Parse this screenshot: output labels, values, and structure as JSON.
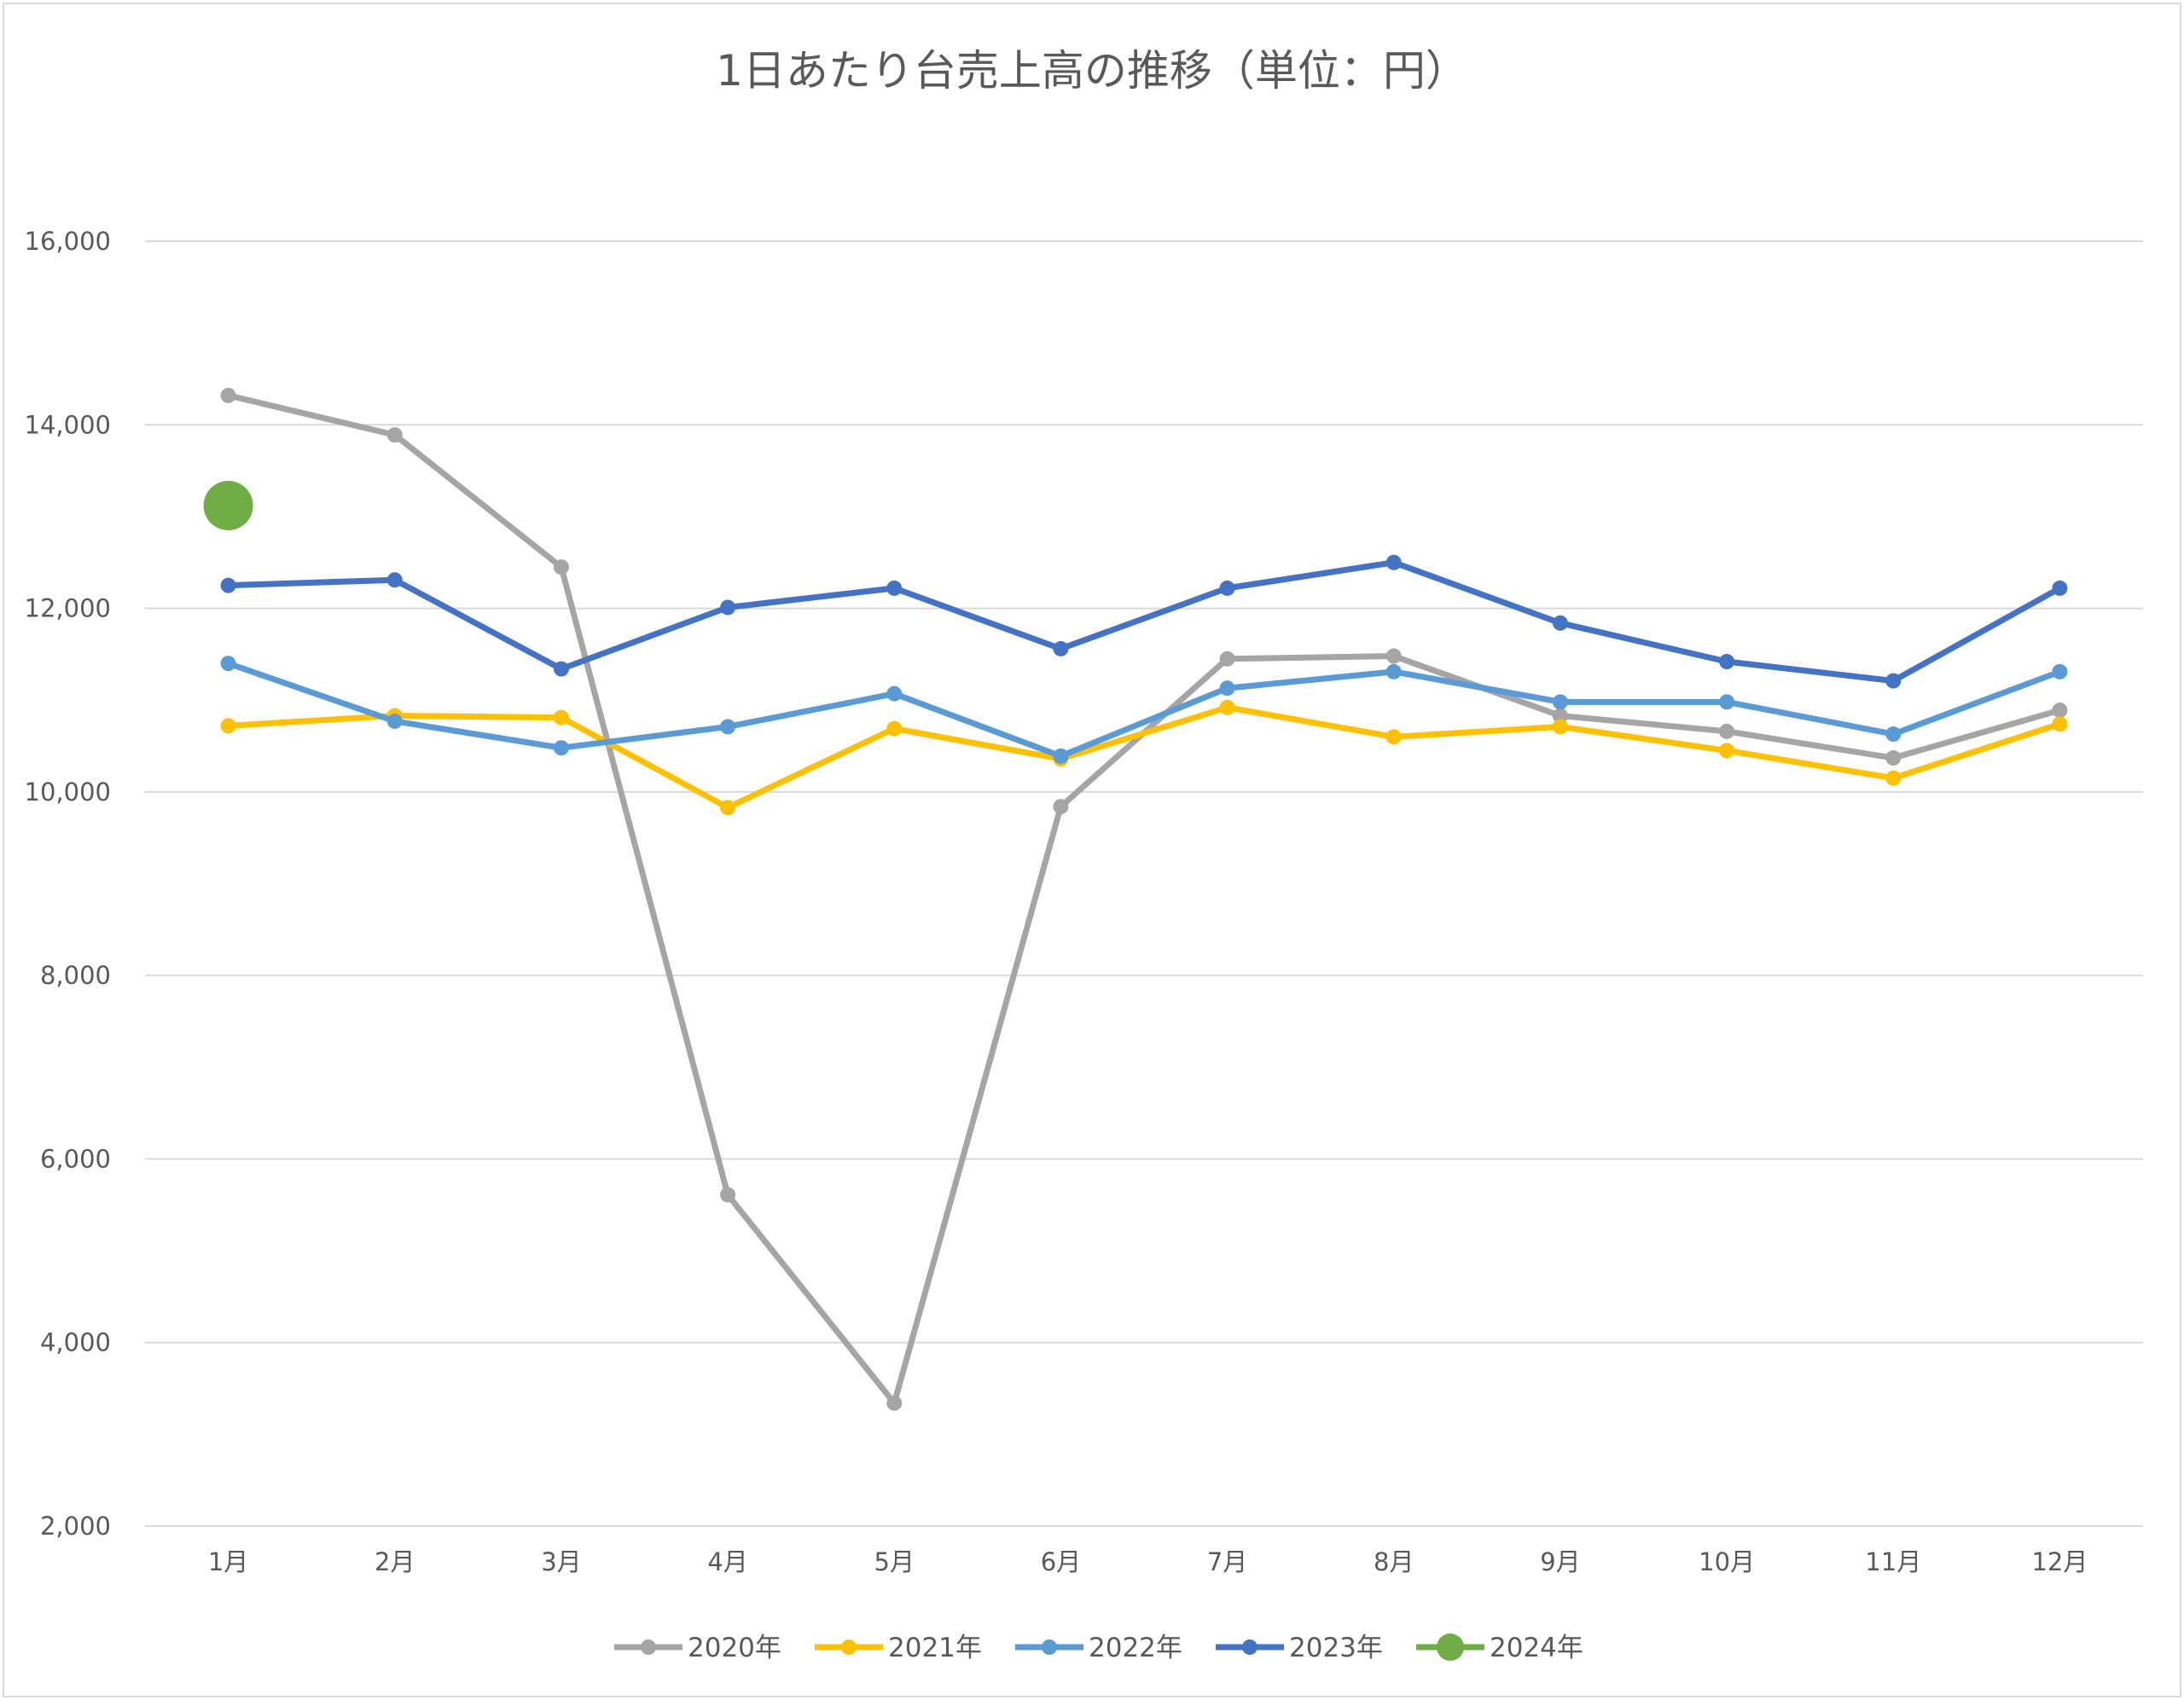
{
  "chart_data": {
    "type": "line",
    "title": "1日あたり台売上高の推移（単位：円）",
    "xlabel": "",
    "ylabel": "",
    "categories": [
      "1月",
      "2月",
      "3月",
      "4月",
      "5月",
      "6月",
      "7月",
      "8月",
      "9月",
      "10月",
      "11月",
      "12月"
    ],
    "ylim": [
      2000,
      16000
    ],
    "yticks": [
      2000,
      4000,
      6000,
      8000,
      10000,
      12000,
      14000,
      16000
    ],
    "ytick_labels": [
      "2,000",
      "4,000",
      "6,000",
      "8,000",
      "10,000",
      "12,000",
      "14,000",
      "16,000"
    ],
    "grid": "horizontal",
    "legend_position": "bottom",
    "series": [
      {
        "name": "2020年",
        "color": "#A5A5A5",
        "values": [
          14320,
          13890,
          12450,
          5610,
          3340,
          9840,
          11450,
          11480,
          10830,
          10660,
          10370,
          10890
        ]
      },
      {
        "name": "2021年",
        "color": "#FFC000",
        "values": [
          10720,
          10830,
          10810,
          9830,
          10690,
          10360,
          10920,
          10600,
          10710,
          10450,
          10150,
          10740
        ]
      },
      {
        "name": "2022年",
        "color": "#5B9BD5",
        "values": [
          11400,
          10770,
          10480,
          10710,
          11070,
          10390,
          11130,
          11310,
          10980,
          10980,
          10630,
          11310
        ]
      },
      {
        "name": "2023年",
        "color": "#4472C4",
        "values": [
          12250,
          12310,
          11340,
          12010,
          12220,
          11560,
          12220,
          12500,
          11840,
          11420,
          11210,
          12220
        ]
      },
      {
        "name": "2024年",
        "color": "#70AD47",
        "values": [
          13120,
          null,
          null,
          null,
          null,
          null,
          null,
          null,
          null,
          null,
          null,
          null
        ],
        "large_marker": true
      }
    ]
  }
}
